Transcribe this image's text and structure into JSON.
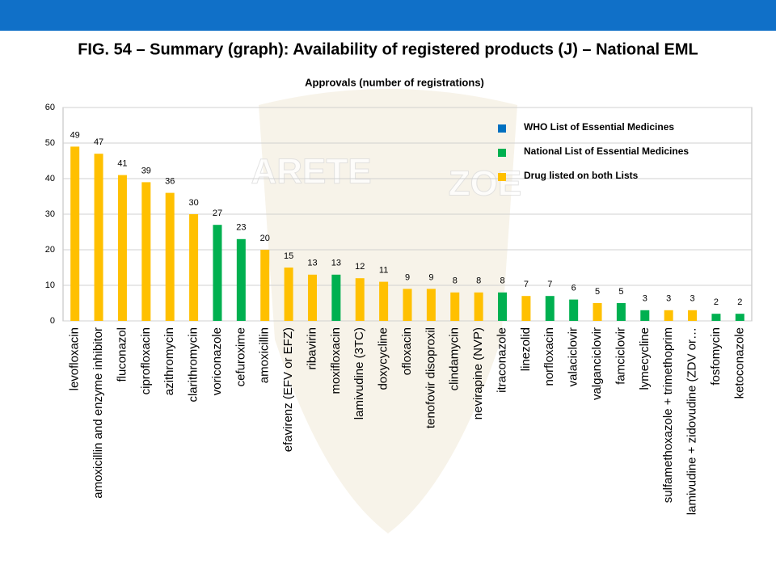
{
  "header": {
    "title": "FIG. 54 – Summary (graph): Availability of registered products (J) – National EML"
  },
  "watermark": [
    "ARETE",
    "ZOE"
  ],
  "chart_data": {
    "type": "bar",
    "title": "Approvals (number of registrations)",
    "categories": [
      "levofloxacin",
      "amoxicillin and enzyme inhibitor",
      "fluconazol",
      "ciprofloxacin",
      "azithromycin",
      "clarithromycin",
      "voriconazole",
      "cefuroxime",
      "amoxicillin",
      "efavirenz (EFV or EFZ)",
      "ribavirin",
      "moxifloxacin",
      "lamivudine (3TC)",
      "doxycycline",
      "ofloxacin",
      "tenofovir disoproxil",
      "clindamycin",
      "nevirapine (NVP)",
      "itraconazole",
      "linezolid",
      "norfloxacin",
      "valaciclovir",
      "valganciclovir",
      "famciclovir",
      "lymecycline",
      "sulfamethoxazole + trimethoprim",
      "lamivudine + zidovudine (ZDV or…",
      "fosfomycin",
      "ketoconazole"
    ],
    "series": [
      {
        "name": "WHO List of Essential Medicines",
        "color": "#0070c0",
        "values": [
          null,
          null,
          null,
          null,
          null,
          null,
          null,
          null,
          null,
          null,
          null,
          null,
          null,
          null,
          null,
          null,
          null,
          null,
          null,
          null,
          null,
          null,
          null,
          null,
          null,
          null,
          null,
          null,
          null
        ]
      },
      {
        "name": "National List of Essential Medicines",
        "color": "#00b050",
        "values": [
          null,
          null,
          null,
          null,
          null,
          null,
          27,
          23,
          null,
          null,
          null,
          13,
          null,
          null,
          null,
          null,
          null,
          null,
          8,
          null,
          7,
          6,
          null,
          5,
          3,
          null,
          null,
          2,
          2
        ]
      },
      {
        "name": "Drug listed on both Lists",
        "color": "#ffc000",
        "values": [
          49,
          47,
          41,
          39,
          36,
          30,
          null,
          null,
          20,
          15,
          13,
          null,
          12,
          11,
          9,
          9,
          8,
          8,
          null,
          7,
          null,
          null,
          5,
          null,
          null,
          3,
          3,
          null,
          null
        ]
      }
    ],
    "ylim": [
      0,
      60
    ],
    "yticks": [
      0,
      10,
      20,
      30,
      40,
      50,
      60
    ],
    "grid": true,
    "legend": "top-right"
  }
}
